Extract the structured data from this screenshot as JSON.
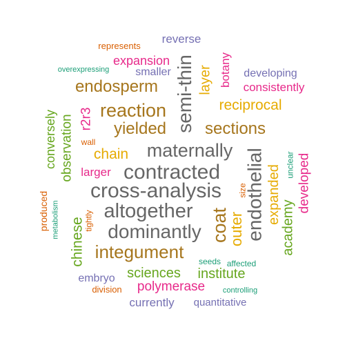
{
  "palette": {
    "teal": "#1b9e77",
    "orange": "#d95f02",
    "purple": "#7570b3",
    "magenta": "#e7298a",
    "green": "#66a61e",
    "gold": "#e6ab02",
    "brown": "#a6761d",
    "gray": "#666666"
  },
  "words": [
    {
      "text": "represents",
      "color": "orange"
    },
    {
      "text": "reverse",
      "color": "purple"
    },
    {
      "text": "expansion",
      "color": "magenta"
    },
    {
      "text": "overexpressing",
      "color": "teal"
    },
    {
      "text": "smaller",
      "color": "purple"
    },
    {
      "text": "semi-thin",
      "color": "gray"
    },
    {
      "text": "layer",
      "color": "gold"
    },
    {
      "text": "botany",
      "color": "magenta"
    },
    {
      "text": "developing",
      "color": "purple"
    },
    {
      "text": "consistently",
      "color": "magenta"
    },
    {
      "text": "endosperm",
      "color": "brown"
    },
    {
      "text": "reciprocal",
      "color": "gold"
    },
    {
      "text": "r2r3",
      "color": "magenta"
    },
    {
      "text": "reaction",
      "color": "brown"
    },
    {
      "text": "conversely",
      "color": "green"
    },
    {
      "text": "observation",
      "color": "green"
    },
    {
      "text": "yielded",
      "color": "brown"
    },
    {
      "text": "sections",
      "color": "brown"
    },
    {
      "text": "wall",
      "color": "orange"
    },
    {
      "text": "chain",
      "color": "gold"
    },
    {
      "text": "maternally",
      "color": "gray"
    },
    {
      "text": "endothelial",
      "color": "gray"
    },
    {
      "text": "unclear",
      "color": "teal"
    },
    {
      "text": "developed",
      "color": "magenta"
    },
    {
      "text": "larger",
      "color": "magenta"
    },
    {
      "text": "contracted",
      "color": "gray"
    },
    {
      "text": "expanded",
      "color": "gold"
    },
    {
      "text": "cross-analysis",
      "color": "gray"
    },
    {
      "text": "size",
      "color": "orange"
    },
    {
      "text": "produced",
      "color": "orange"
    },
    {
      "text": "metabolism",
      "color": "teal"
    },
    {
      "text": "tightly",
      "color": "orange"
    },
    {
      "text": "altogether",
      "color": "gray"
    },
    {
      "text": "coat",
      "color": "brown"
    },
    {
      "text": "outer",
      "color": "gold"
    },
    {
      "text": "academy",
      "color": "green"
    },
    {
      "text": "chinese",
      "color": "green"
    },
    {
      "text": "dominantly",
      "color": "gray"
    },
    {
      "text": "integument",
      "color": "brown"
    },
    {
      "text": "seeds",
      "color": "teal"
    },
    {
      "text": "affected",
      "color": "teal"
    },
    {
      "text": "sciences",
      "color": "green"
    },
    {
      "text": "institute",
      "color": "green"
    },
    {
      "text": "embryo",
      "color": "purple"
    },
    {
      "text": "polymerase",
      "color": "magenta"
    },
    {
      "text": "division",
      "color": "orange"
    },
    {
      "text": "controlling",
      "color": "teal"
    },
    {
      "text": "currently",
      "color": "purple"
    },
    {
      "text": "quantitative",
      "color": "purple"
    }
  ]
}
